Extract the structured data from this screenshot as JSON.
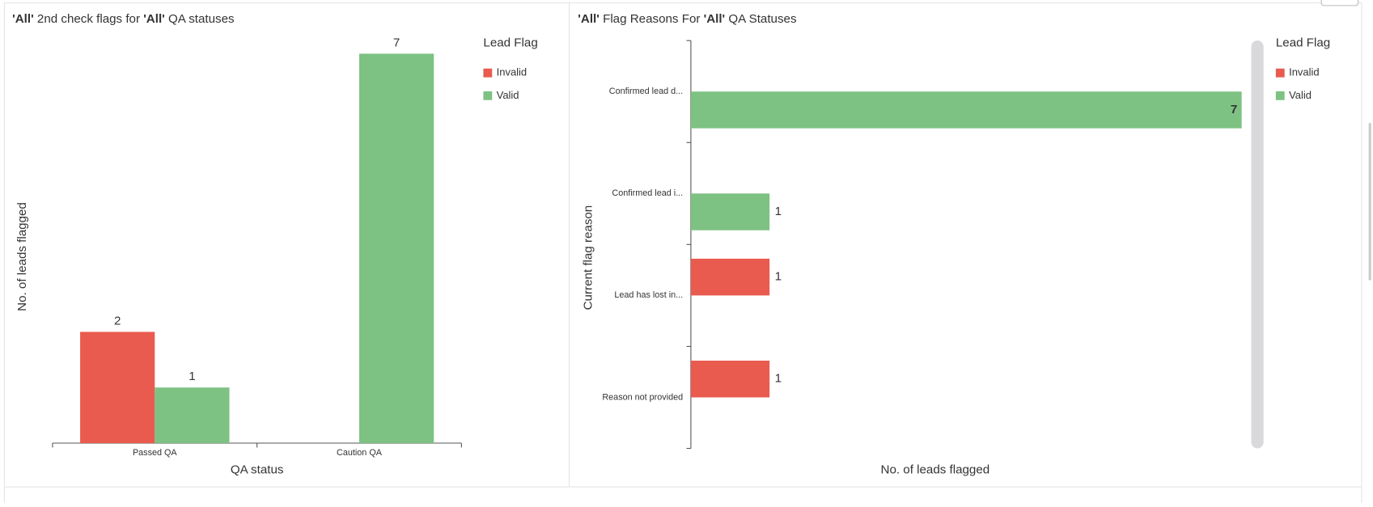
{
  "chart_data": [
    {
      "type": "bar",
      "title": "'All' 2nd check flags for 'All' QA statuses",
      "x_label": "QA status",
      "y_label": "No. of leads flagged",
      "legend_title": "Lead Flag",
      "categories": [
        "Passed QA",
        "Caution QA"
      ],
      "series": [
        {
          "name": "Invalid",
          "color": "#e95b4f",
          "values": [
            2,
            null
          ]
        },
        {
          "name": "Valid",
          "color": "#7dc283",
          "values": [
            1,
            7
          ]
        }
      ],
      "ylim": [
        0,
        7
      ]
    },
    {
      "type": "hbar",
      "title": "'All' Flag Reasons For 'All' QA Statuses",
      "x_label": "No. of leads flagged",
      "y_label": "Current flag reason",
      "legend_title": "Lead Flag",
      "categories": [
        "Confirmed lead d...",
        "Confirmed lead i...",
        "Lead has lost in...",
        "Reason not provided"
      ],
      "series": [
        {
          "name": "Invalid",
          "color": "#e95b4f",
          "values": [
            null,
            null,
            1,
            1
          ]
        },
        {
          "name": "Valid",
          "color": "#7dc283",
          "values": [
            7,
            1,
            null,
            null
          ]
        }
      ],
      "xlim": [
        0,
        7
      ]
    }
  ]
}
